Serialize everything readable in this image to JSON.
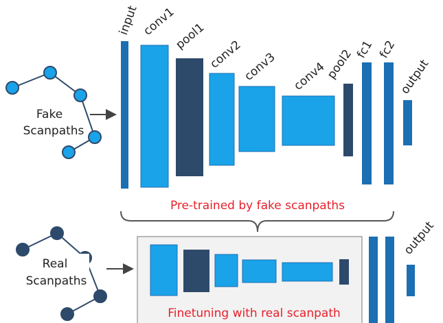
{
  "top_network": {
    "layers": [
      "input",
      "conv1",
      "pool1",
      "conv2",
      "conv3",
      "conv4",
      "pool2",
      "fc1",
      "fc2",
      "output"
    ],
    "input_label": [
      "Fake",
      "Scanpaths"
    ],
    "caption": "Pre-trained by fake scanpaths"
  },
  "bottom_network": {
    "input_label": [
      "Real",
      "Scanpaths"
    ],
    "caption": "Finetuning with real scanpath",
    "output_label": "output"
  }
}
